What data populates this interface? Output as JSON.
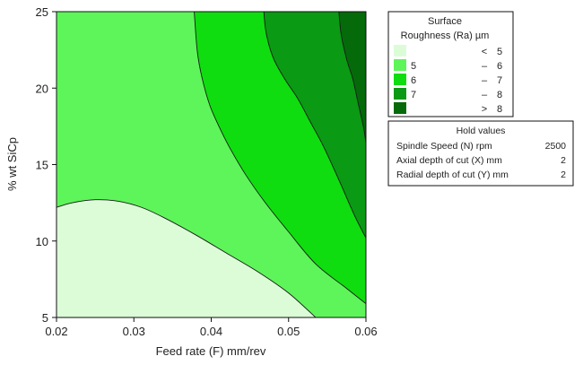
{
  "chart_data": {
    "type": "contour",
    "xlabel": "Feed rate (F) mm/rev",
    "ylabel": "% wt SiCp",
    "xlim": [
      0.02,
      0.06
    ],
    "ylim": [
      5,
      25
    ],
    "xticks": [
      "0.02",
      "0.03",
      "0.04",
      "0.05",
      "0.06"
    ],
    "yticks": [
      "5",
      "10",
      "15",
      "20",
      "25"
    ],
    "legend_title": [
      "Surface",
      "Roughness (Ra) µm"
    ],
    "levels": [
      {
        "lo": "<",
        "hi": "5",
        "color": "#dcfcd8"
      },
      {
        "lo": "5",
        "sep": "–",
        "hi": "6",
        "color": "#5ef55a"
      },
      {
        "lo": "6",
        "sep": "–",
        "hi": "7",
        "color": "#0fdd0f"
      },
      {
        "lo": "7",
        "sep": "–",
        "hi": "8",
        "color": "#0a9a13"
      },
      {
        "lo": ">",
        "hi": "8",
        "color": "#046a0a"
      }
    ],
    "contours": [
      {
        "level": 5,
        "points": [
          [
            0.02,
            12.2
          ],
          [
            0.022,
            12.5
          ],
          [
            0.025,
            12.7
          ],
          [
            0.028,
            12.6
          ],
          [
            0.031,
            12.2
          ],
          [
            0.034,
            11.5
          ],
          [
            0.038,
            10.4
          ],
          [
            0.042,
            9.2
          ],
          [
            0.046,
            8.0
          ],
          [
            0.05,
            6.6
          ],
          [
            0.0535,
            5.0
          ]
        ]
      },
      {
        "level": 6,
        "points": [
          [
            0.0378,
            25
          ],
          [
            0.0382,
            22.4
          ],
          [
            0.0388,
            20.7
          ],
          [
            0.0398,
            18.9
          ],
          [
            0.041,
            17.5
          ],
          [
            0.0425,
            16.0
          ],
          [
            0.0445,
            14.3
          ],
          [
            0.047,
            12.5
          ],
          [
            0.05,
            10.6
          ],
          [
            0.0535,
            8.5
          ],
          [
            0.0575,
            6.9
          ],
          [
            0.06,
            5.9
          ]
        ]
      },
      {
        "level": 7,
        "points": [
          [
            0.0468,
            25
          ],
          [
            0.0471,
            23.6
          ],
          [
            0.048,
            22.0
          ],
          [
            0.0495,
            20.6
          ],
          [
            0.0512,
            19.3
          ],
          [
            0.0528,
            17.8
          ],
          [
            0.0545,
            16.2
          ],
          [
            0.0565,
            14.0
          ],
          [
            0.0585,
            11.7
          ],
          [
            0.06,
            10.2
          ]
        ]
      },
      {
        "level": 8,
        "points": [
          [
            0.0565,
            25
          ],
          [
            0.0568,
            23.5
          ],
          [
            0.0575,
            21.9
          ],
          [
            0.0583,
            20.6
          ],
          [
            0.059,
            19.0
          ],
          [
            0.0597,
            17.4
          ],
          [
            0.06,
            16.4
          ]
        ]
      }
    ]
  },
  "hold_values": {
    "title": "Hold values",
    "rows": [
      {
        "label": "Spindle Speed (N) rpm",
        "value": "2500"
      },
      {
        "label": "Axial depth of cut (X) mm",
        "value": "2"
      },
      {
        "label": "Radial depth of cut (Y) mm",
        "value": "2"
      }
    ]
  }
}
